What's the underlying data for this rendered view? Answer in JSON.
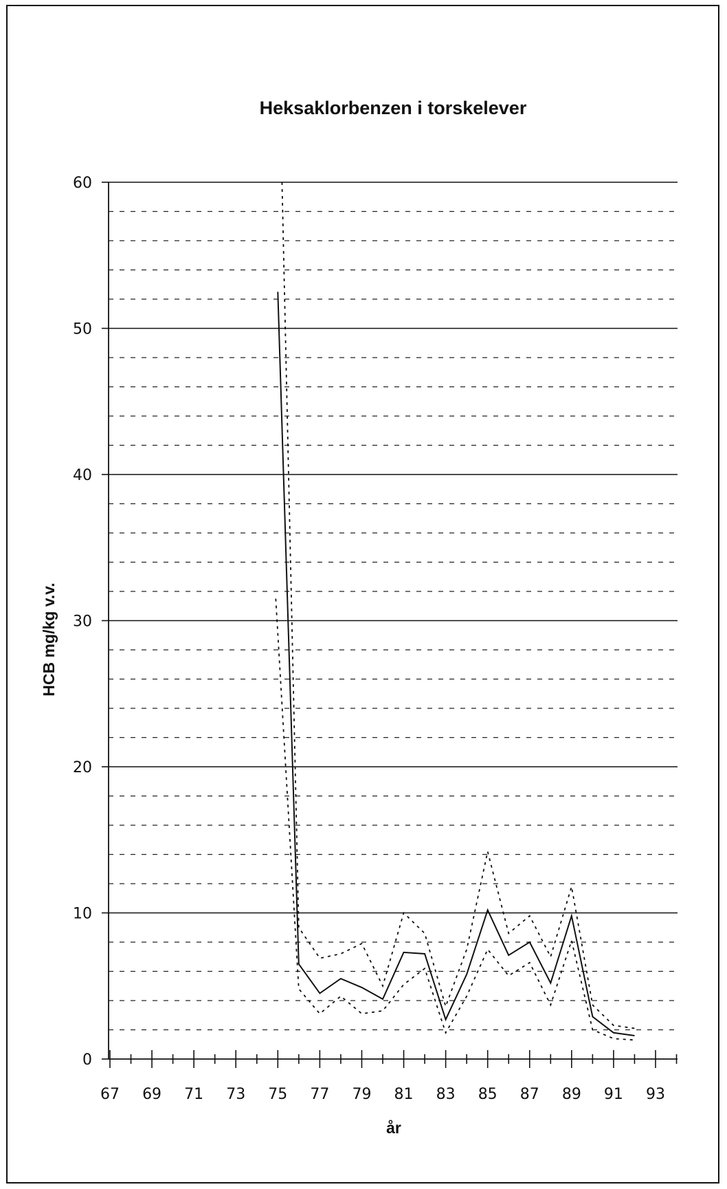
{
  "chart_data": {
    "type": "line",
    "title": "Heksaklorbenzen i torskelever",
    "xlabel": "år",
    "ylabel": "HCB mg/kg v.v.",
    "xlim": [
      67,
      94
    ],
    "ylim": [
      0,
      60
    ],
    "x_ticks": [
      "67",
      "69",
      "71",
      "73",
      "75",
      "77",
      "79",
      "81",
      "83",
      "85",
      "87",
      "89",
      "91",
      "93"
    ],
    "y_ticks": [
      "0",
      "10",
      "20",
      "30",
      "40",
      "50",
      "60"
    ],
    "major_gridlines": [
      10,
      20,
      30,
      40,
      50,
      60
    ],
    "minor_gridlines": [
      2,
      4,
      6,
      8,
      12,
      14,
      16,
      18,
      22,
      24,
      26,
      28,
      32,
      34,
      36,
      38,
      42,
      44,
      46,
      48,
      52,
      54,
      56,
      58
    ],
    "grid": true,
    "series": [
      {
        "style": "solid",
        "color": "#111111",
        "x": [
          75,
          76,
          77,
          78,
          79,
          80,
          81,
          82,
          83,
          84,
          85,
          86,
          87,
          88,
          89,
          90,
          91,
          92
        ],
        "y": [
          52.5,
          6.5,
          4.5,
          5.5,
          4.9,
          4.1,
          7.3,
          7.2,
          2.7,
          5.8,
          10.2,
          7.1,
          8.0,
          5.2,
          9.8,
          2.9,
          1.8,
          1.6
        ]
      },
      {
        "style": "dotted",
        "color": "#111111",
        "x": [
          75.2,
          76,
          77,
          78,
          79,
          80,
          81,
          82,
          83,
          84,
          85,
          86,
          87,
          88,
          89,
          90,
          91,
          92
        ],
        "y": [
          60,
          9.0,
          6.9,
          7.2,
          7.9,
          5.0,
          10.0,
          8.6,
          3.6,
          7.5,
          14.2,
          8.6,
          9.8,
          7.0,
          11.8,
          3.7,
          2.3,
          2.1
        ]
      },
      {
        "style": "dotted",
        "color": "#111111",
        "x": [
          74.9,
          76,
          77,
          78,
          79,
          80,
          81,
          82,
          83,
          84,
          85,
          86,
          87,
          88,
          89,
          90,
          91,
          92
        ],
        "y": [
          31.5,
          4.8,
          3.1,
          4.3,
          3.1,
          3.3,
          5.1,
          6.2,
          1.8,
          4.3,
          7.5,
          5.7,
          6.6,
          3.7,
          8.1,
          2.0,
          1.4,
          1.3
        ]
      }
    ]
  }
}
